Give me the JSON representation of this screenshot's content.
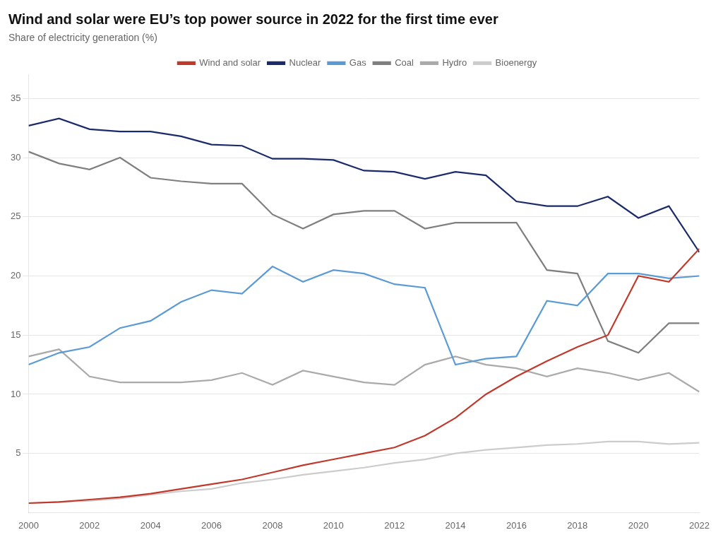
{
  "chart_data": {
    "type": "line",
    "title": "Wind and solar were EU’s top power source in 2022 for the first time ever",
    "subtitle": "Share of electricity generation (%)",
    "x": [
      2000,
      2001,
      2002,
      2003,
      2004,
      2005,
      2006,
      2007,
      2008,
      2009,
      2010,
      2011,
      2012,
      2013,
      2014,
      2015,
      2016,
      2017,
      2018,
      2019,
      2020,
      2021,
      2022
    ],
    "series": [
      {
        "name": "Wind and solar",
        "color": "#C0392B",
        "values": [
          0.8,
          0.9,
          1.1,
          1.3,
          1.6,
          2.0,
          2.4,
          2.8,
          3.4,
          4.0,
          4.5,
          5.0,
          5.5,
          6.5,
          8.0,
          10.0,
          11.5,
          12.8,
          14.0,
          15.0,
          20.0,
          19.5,
          22.3
        ]
      },
      {
        "name": "Nuclear",
        "color": "#1B2A6B",
        "values": [
          32.7,
          33.3,
          32.4,
          32.2,
          32.2,
          31.8,
          31.1,
          31.0,
          29.9,
          29.9,
          29.8,
          28.9,
          28.8,
          28.2,
          28.8,
          28.5,
          26.3,
          25.9,
          25.9,
          26.7,
          24.9,
          25.9,
          22.0
        ]
      },
      {
        "name": "Gas",
        "color": "#5B9BD5",
        "values": [
          12.5,
          13.5,
          14.0,
          15.6,
          16.2,
          17.8,
          18.8,
          18.5,
          20.8,
          19.5,
          20.5,
          20.2,
          19.3,
          19.0,
          12.5,
          13.0,
          13.2,
          17.9,
          17.5,
          20.2,
          20.2,
          19.8,
          20.0
        ]
      },
      {
        "name": "Coal",
        "color": "#7F7F7F",
        "values": [
          30.5,
          29.5,
          29.0,
          30.0,
          28.3,
          28.0,
          27.8,
          27.8,
          25.2,
          24.0,
          25.2,
          25.5,
          25.5,
          24.0,
          24.5,
          24.5,
          24.5,
          20.5,
          20.2,
          14.5,
          13.5,
          16.0,
          16.0
        ]
      },
      {
        "name": "Hydro",
        "color": "#AAAAAA",
        "values": [
          13.2,
          13.8,
          11.5,
          11.0,
          11.0,
          11.0,
          11.2,
          11.8,
          10.8,
          12.0,
          11.5,
          11.0,
          10.8,
          12.5,
          13.2,
          12.5,
          12.2,
          11.5,
          12.2,
          11.8,
          11.2,
          11.8,
          10.2
        ]
      },
      {
        "name": "Bioenergy",
        "color": "#CCCCCC",
        "values": [
          0.8,
          0.9,
          1.0,
          1.2,
          1.5,
          1.8,
          2.0,
          2.5,
          2.8,
          3.2,
          3.5,
          3.8,
          4.2,
          4.5,
          5.0,
          5.3,
          5.5,
          5.7,
          5.8,
          6.0,
          6.0,
          5.8,
          5.9
        ]
      }
    ],
    "xlim": [
      2000,
      2022
    ],
    "xticks": [
      2000,
      2002,
      2004,
      2006,
      2008,
      2010,
      2012,
      2014,
      2016,
      2018,
      2020,
      2022
    ],
    "ylim": [
      0,
      37
    ],
    "yticks": [
      5,
      10,
      15,
      20,
      25,
      30,
      35
    ],
    "grid": true,
    "legend": "top"
  }
}
